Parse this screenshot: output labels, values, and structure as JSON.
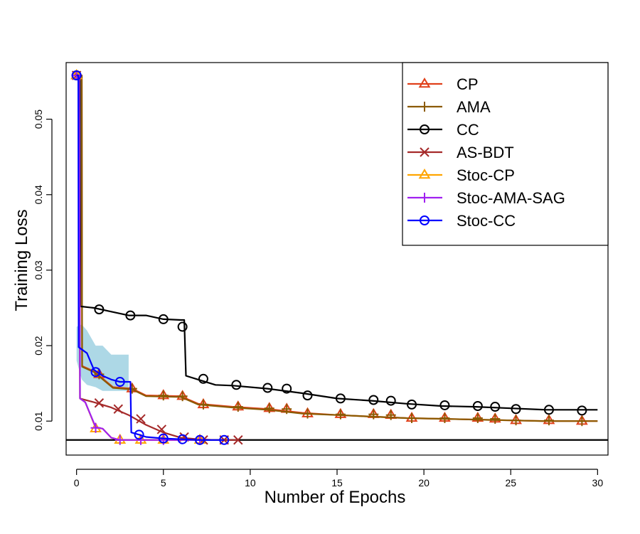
{
  "chart_data": {
    "type": "line",
    "title": "",
    "xlabel": "Number of Epochs",
    "ylabel": "Training Loss",
    "xlim": [
      -0.6,
      30.6
    ],
    "ylim": [
      0.0055,
      0.0575
    ],
    "xticks": [
      0,
      5,
      10,
      15,
      20,
      25,
      30
    ],
    "xtick_labels": [
      "0",
      "5",
      "10",
      "15",
      "20",
      "25",
      "30"
    ],
    "yticks": [
      0.01,
      0.02,
      0.03,
      0.04,
      0.05
    ],
    "ytick_labels": [
      "0.01",
      "0.02",
      "0.03",
      "0.04",
      "0.05"
    ],
    "grid": false,
    "legend_position": "top-right",
    "reference_line": {
      "y": 0.0075,
      "color": "#000000"
    },
    "band": {
      "series": "Stoc-CC",
      "color": "#add8e6",
      "x": [
        0.0,
        0.3,
        0.6,
        1.1,
        1.5,
        2.0,
        2.5,
        3.0
      ],
      "lower": [
        0.018,
        0.0155,
        0.0148,
        0.0145,
        0.014,
        0.014,
        0.014,
        0.014
      ],
      "upper": [
        0.0225,
        0.0228,
        0.022,
        0.02,
        0.02,
        0.0188,
        0.0188,
        0.0188
      ]
    },
    "series": [
      {
        "name": "CP",
        "color": "#e0401a",
        "marker": "triangle",
        "x": [
          0,
          0.3,
          0.32,
          1.0,
          2.1,
          3.2,
          4.0,
          6.0,
          7.0,
          9.0,
          11.0,
          13.0,
          15.0,
          17.0,
          19.0,
          21.0,
          23.0,
          25.0,
          27.0,
          29.0,
          30.0
        ],
        "y": [
          0.0558,
          0.0558,
          0.0173,
          0.0166,
          0.0145,
          0.0143,
          0.0134,
          0.0133,
          0.0123,
          0.0119,
          0.0116,
          0.0111,
          0.0108,
          0.0106,
          0.0104,
          0.0103,
          0.0102,
          0.0101,
          0.01,
          0.01,
          0.01
        ],
        "marker_x": [
          0,
          1.3,
          3.2,
          5.0,
          6.1,
          7.3,
          9.3,
          11.1,
          12.1,
          13.3,
          15.2,
          17.1,
          18.1,
          19.3,
          21.2,
          23.1,
          24.1,
          25.3,
          27.2,
          29.1
        ],
        "marker_y": [
          0.0558,
          0.0162,
          0.0143,
          0.0134,
          0.0133,
          0.0122,
          0.0119,
          0.0117,
          0.0116,
          0.011,
          0.0109,
          0.0109,
          0.0108,
          0.0104,
          0.0104,
          0.0104,
          0.0103,
          0.0101,
          0.0101,
          0.01
        ]
      },
      {
        "name": "AMA",
        "color": "#8b5a00",
        "marker": "plus",
        "x": [
          0,
          0.3,
          0.32,
          1.0,
          2.1,
          3.2,
          4.0,
          6.0,
          7.0,
          9.0,
          11.0,
          13.0,
          15.0,
          17.0,
          19.0,
          21.0,
          23.0,
          25.0,
          27.0,
          29.0,
          30.0
        ],
        "y": [
          0.0558,
          0.0558,
          0.0172,
          0.0165,
          0.0144,
          0.0142,
          0.0133,
          0.0132,
          0.0122,
          0.0118,
          0.0115,
          0.011,
          0.0108,
          0.0106,
          0.0104,
          0.0103,
          0.0102,
          0.0101,
          0.01,
          0.01,
          0.01
        ],
        "marker_x": [
          0,
          1.3,
          3.2,
          5.0,
          6.1,
          7.3,
          9.3,
          11.1,
          12.1,
          13.3,
          15.2,
          17.1,
          18.1,
          19.3,
          21.2,
          23.1,
          24.1,
          25.3,
          27.2,
          29.1
        ],
        "marker_y": [
          0.0558,
          0.0162,
          0.0143,
          0.0134,
          0.0133,
          0.0122,
          0.0119,
          0.0117,
          0.0116,
          0.011,
          0.0109,
          0.0109,
          0.0108,
          0.0104,
          0.0104,
          0.0104,
          0.0103,
          0.0101,
          0.0101,
          0.01
        ]
      },
      {
        "name": "CC",
        "color": "#000000",
        "marker": "circle",
        "x": [
          0,
          0.2,
          0.22,
          1.0,
          2.0,
          3.0,
          4.0,
          5.0,
          6.0,
          6.2,
          6.3,
          7.0,
          8.0,
          9.0,
          11.0,
          13.0,
          15.0,
          17.0,
          19.0,
          21.0,
          23.0,
          25.0,
          27.0,
          29.0,
          30.0
        ],
        "y": [
          0.0558,
          0.0558,
          0.0252,
          0.025,
          0.0245,
          0.024,
          0.024,
          0.0235,
          0.0234,
          0.0234,
          0.016,
          0.0155,
          0.0148,
          0.0147,
          0.0143,
          0.0137,
          0.013,
          0.0127,
          0.0123,
          0.012,
          0.0119,
          0.0117,
          0.0115,
          0.0115,
          0.0115
        ],
        "marker_x": [
          0,
          1.3,
          3.1,
          5.0,
          6.1,
          7.3,
          9.2,
          11.0,
          12.1,
          13.3,
          15.2,
          17.1,
          18.1,
          19.3,
          21.2,
          23.1,
          24.1,
          25.3,
          27.2,
          29.1
        ],
        "marker_y": [
          0.0558,
          0.0248,
          0.024,
          0.0235,
          0.0225,
          0.0156,
          0.0148,
          0.0144,
          0.0143,
          0.0134,
          0.013,
          0.0128,
          0.0127,
          0.0122,
          0.0121,
          0.012,
          0.0119,
          0.0116,
          0.0115,
          0.0114
        ]
      },
      {
        "name": "AS-BDT",
        "color": "#a52a2a",
        "marker": "x",
        "x": [
          0,
          0.15,
          0.2,
          1.0,
          2.0,
          3.0,
          4.0,
          5.0,
          6.0,
          7.0,
          8.0,
          9.3
        ],
        "y": [
          0.0558,
          0.0558,
          0.013,
          0.0125,
          0.0118,
          0.0108,
          0.0095,
          0.0085,
          0.0078,
          0.0076,
          0.0075,
          0.0075
        ],
        "marker_x": [
          0,
          1.3,
          2.4,
          3.7,
          4.9,
          6.2,
          7.3,
          8.5,
          9.3
        ],
        "marker_y": [
          0.0558,
          0.0124,
          0.0116,
          0.0103,
          0.0089,
          0.0079,
          0.0075,
          0.0075,
          0.0075
        ]
      },
      {
        "name": "Stoc-CP",
        "color": "#ffa500",
        "marker": "triangle",
        "x": [
          0,
          0.15,
          0.2,
          0.5,
          1.1,
          1.5,
          2.0,
          2.5,
          3.0,
          4.0,
          5.0,
          6.0,
          7.2
        ],
        "y": [
          0.0558,
          0.0558,
          0.013,
          0.0125,
          0.0091,
          0.009,
          0.0078,
          0.0075,
          0.0075,
          0.0075,
          0.0075,
          0.0075,
          0.0075
        ],
        "marker_x": [
          0,
          1.1,
          2.5,
          3.7,
          5.0,
          7.1
        ],
        "marker_y": [
          0.0558,
          0.009,
          0.0075,
          0.0075,
          0.0075,
          0.0075
        ]
      },
      {
        "name": "Stoc-AMA-SAG",
        "color": "#a020f0",
        "marker": "plus",
        "x": [
          0,
          0.15,
          0.2,
          0.5,
          1.1,
          1.5,
          2.0,
          2.5,
          3.0,
          4.0,
          5.0,
          6.0,
          7.2
        ],
        "y": [
          0.0558,
          0.0558,
          0.013,
          0.0125,
          0.0092,
          0.009,
          0.0078,
          0.0075,
          0.0075,
          0.0075,
          0.0075,
          0.0075,
          0.0075
        ],
        "marker_x": [
          0,
          1.1,
          2.5,
          3.7,
          5.0,
          7.1
        ],
        "marker_y": [
          0.0558,
          0.0091,
          0.0075,
          0.0075,
          0.0075,
          0.0075
        ]
      },
      {
        "name": "Stoc-CC",
        "color": "#0000ff",
        "marker": "circle",
        "x": [
          0,
          0.1,
          0.12,
          0.6,
          1.0,
          1.5,
          2.0,
          2.5,
          3.0,
          3.1,
          3.15,
          3.6,
          4.0,
          5.0,
          6.0,
          7.0,
          8.5
        ],
        "y": [
          0.0558,
          0.0558,
          0.0198,
          0.019,
          0.0168,
          0.016,
          0.0155,
          0.0152,
          0.0152,
          0.0152,
          0.0085,
          0.0082,
          0.0079,
          0.0077,
          0.0076,
          0.0075,
          0.0075
        ],
        "marker_x": [
          0,
          1.1,
          2.5,
          3.6,
          5.0,
          6.1,
          7.1,
          8.5
        ],
        "marker_y": [
          0.0558,
          0.0165,
          0.0152,
          0.0082,
          0.0077,
          0.0076,
          0.0075,
          0.0075
        ]
      }
    ]
  }
}
